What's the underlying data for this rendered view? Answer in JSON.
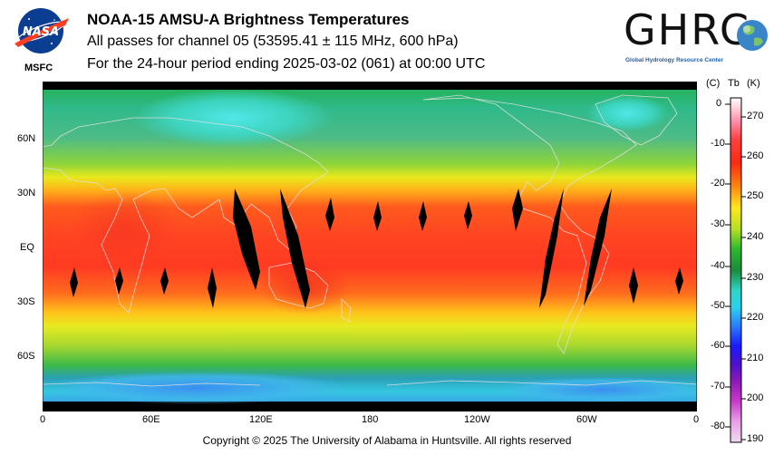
{
  "header": {
    "title": "NOAA-15 AMSU-A Brightness Temperatures",
    "subtitle1": "All passes for channel 05 (53595.41 ± 115 MHz, 600 hPa)",
    "subtitle2": "For the 24-hour period ending 2025-03-02 (061) at 00:00 UTC"
  },
  "logos": {
    "nasa_text": "NASA",
    "msfc_label": "MSFC",
    "ghrc_text": "GHRC",
    "ghrc_subtitle": "Global Hydrology Resource Center"
  },
  "map": {
    "lat_labels": [
      "60N",
      "30N",
      "EQ",
      "30S",
      "60S"
    ],
    "lon_labels": [
      "0",
      "60E",
      "120E",
      "180",
      "120W",
      "60W",
      "0"
    ]
  },
  "colorbar": {
    "celsius_unit": "(C)",
    "tb_label": "Tb",
    "kelvin_unit": "(K)",
    "celsius_ticks": [
      "0",
      "-10",
      "-20",
      "-30",
      "-40",
      "-50",
      "-60",
      "-70",
      "-80"
    ],
    "kelvin_ticks": [
      "270",
      "260",
      "250",
      "240",
      "230",
      "220",
      "210",
      "200",
      "190"
    ]
  },
  "footer": {
    "copyright": "Copyright © 2025 The University of Alabama in Huntsville.  All rights reserved"
  },
  "colors": {
    "nasa_blue": "#0b3d91",
    "nasa_red": "#fc3d21",
    "ghrc_blue": "#1e5fa8"
  }
}
